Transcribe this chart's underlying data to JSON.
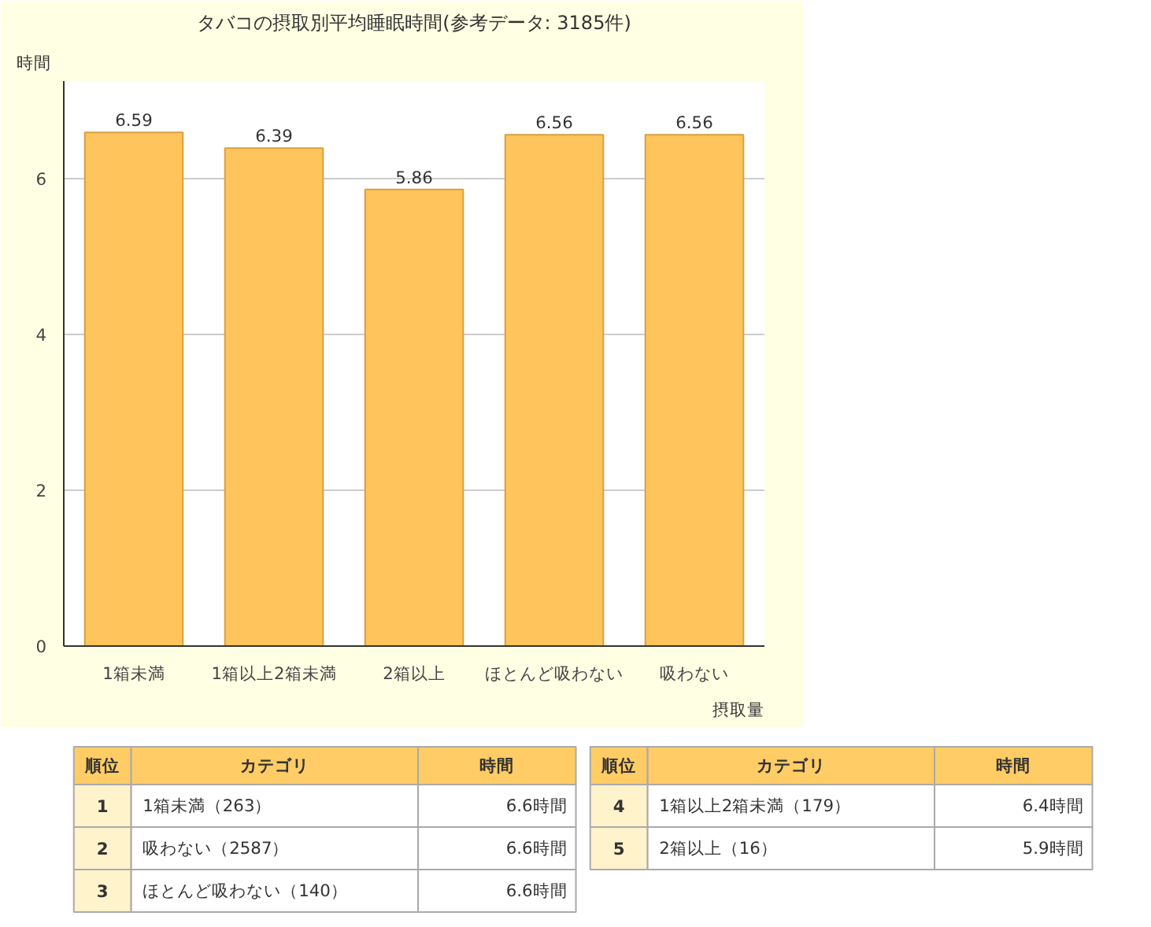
{
  "chart_data": {
    "type": "bar",
    "title": "タバコの摂取別平均睡眠時間(参考データ: 3185件)",
    "ylabel": "時間",
    "xlabel": "摂取量",
    "categories": [
      "1箱未満",
      "1箱以上2箱未満",
      "2箱以上",
      "ほとんど吸わない",
      "吸わない"
    ],
    "values": [
      6.59,
      6.39,
      5.86,
      6.56,
      6.56
    ],
    "color": "#ffc45c",
    "data_labels": true,
    "ylim": [
      0,
      7.25
    ],
    "yticks": [
      0,
      2,
      4,
      6
    ],
    "grid": "y",
    "annotations": [
      "順位",
      "カテゴリ",
      "時間",
      "1",
      "1箱未満（263）",
      "6.6時間",
      "2",
      "吸わない（2587）",
      "6.6時間",
      "3",
      "ほとんど吸わない（140）",
      "6.6時間",
      "順位",
      "カテゴリ",
      "時間",
      "4",
      "1箱以上2箱未満（179）",
      "6.4時間",
      "5",
      "2箱以上（16）",
      "5.9時間"
    ]
  }
}
